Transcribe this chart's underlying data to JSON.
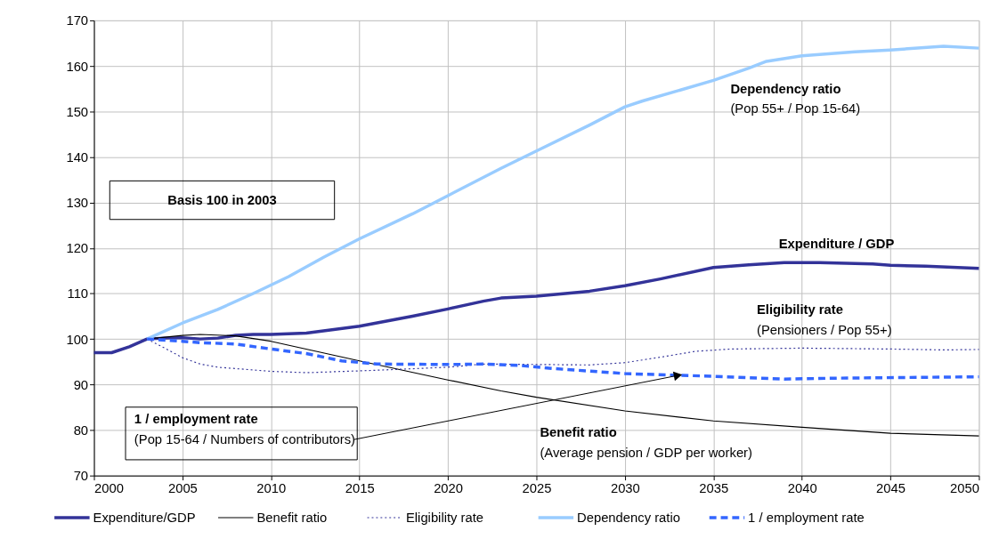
{
  "chart_data": {
    "type": "line",
    "xlim": [
      2000,
      2050
    ],
    "xticks": [
      2000,
      2005,
      2010,
      2015,
      2020,
      2025,
      2030,
      2035,
      2040,
      2045,
      2050
    ],
    "ylim": [
      70,
      170
    ],
    "yticks": [
      70,
      80,
      90,
      100,
      110,
      120,
      130,
      140,
      150,
      160,
      170
    ],
    "grid": true,
    "legend": "bottom",
    "annotations": [
      "Basis 100 in 2003",
      "Dependency ratio\n(Pop 55+ / Pop 15-64)",
      "Expenditure / GDP",
      "Eligibility rate\n(Pensioners / Pop 55+)",
      {
        "text": "1 / employment rate\n(Pop 15-64 / Numbers of contributors)",
        "x": 2033,
        "y": 92
      },
      "Benefit ratio\n(Average pension / GDP per worker)"
    ],
    "series": [
      {
        "name": "Expenditure/GDP",
        "color": "#333399",
        "line_style": "solid",
        "x": [
          2000,
          2001,
          2002,
          2003,
          2004,
          2005,
          2006,
          2007,
          2008,
          2009,
          2010,
          2012,
          2015,
          2018,
          2020,
          2022,
          2023,
          2025,
          2028,
          2030,
          2032,
          2035,
          2037,
          2039,
          2041,
          2044,
          2045,
          2047,
          2050
        ],
        "values": [
          97,
          97,
          98.3,
          100,
          100.2,
          100.3,
          100,
          100.2,
          100.8,
          101,
          101,
          101.3,
          102.8,
          105,
          106.6,
          108.3,
          109,
          109.4,
          110.5,
          111.7,
          113.2,
          115.7,
          116.3,
          116.8,
          116.8,
          116.5,
          116.2,
          116,
          115.5
        ]
      },
      {
        "name": "Benefit ratio",
        "color": "#000000",
        "line_style": "solid",
        "x": [
          2003,
          2005,
          2006,
          2008,
          2010,
          2015,
          2020,
          2023,
          2025,
          2030,
          2035,
          2040,
          2045,
          2050
        ],
        "values": [
          100,
          100.8,
          101,
          100.7,
          99.5,
          95.2,
          91,
          88.6,
          87.2,
          84.2,
          82,
          80.6,
          79.3,
          78.7
        ]
      },
      {
        "name": "Eligibility rate",
        "color": "#333399",
        "line_style": "dotted",
        "x": [
          2003,
          2004,
          2005,
          2006,
          2007,
          2010,
          2012,
          2015,
          2017,
          2020,
          2022,
          2025,
          2028,
          2030,
          2032,
          2034,
          2036,
          2040,
          2045,
          2048,
          2050
        ],
        "values": [
          100,
          98,
          95.9,
          94.5,
          93.8,
          92.9,
          92.6,
          93,
          93.3,
          93.8,
          94.5,
          94.4,
          94.3,
          94.8,
          96,
          97.3,
          97.8,
          98,
          97.8,
          97.6,
          97.7
        ]
      },
      {
        "name": "Dependency ratio",
        "color": "#99ccff",
        "line_style": "solid",
        "x": [
          2003,
          2005,
          2007,
          2009,
          2011,
          2013,
          2015,
          2018,
          2020,
          2023,
          2025,
          2028,
          2030,
          2031,
          2035,
          2037,
          2038,
          2040,
          2043,
          2045,
          2048,
          2050
        ],
        "values": [
          100,
          103.5,
          106.5,
          110,
          113.7,
          118,
          122,
          127.5,
          131.5,
          137.5,
          141.3,
          147,
          151,
          152.3,
          156.8,
          159.5,
          161,
          162.2,
          163.1,
          163.5,
          164.3,
          163.9
        ]
      },
      {
        "name": "1 / employment rate",
        "color": "#3366ff",
        "line_style": "dashed",
        "x": [
          2003,
          2005,
          2006,
          2008,
          2010,
          2012,
          2014,
          2016,
          2020,
          2022,
          2024,
          2026,
          2030,
          2035,
          2039,
          2042,
          2050
        ],
        "values": [
          100,
          99.5,
          99.2,
          98.9,
          97.8,
          96.8,
          95.2,
          94.5,
          94.4,
          94.5,
          94.2,
          93.5,
          92.4,
          91.8,
          91.2,
          91.4,
          91.7
        ]
      }
    ]
  }
}
